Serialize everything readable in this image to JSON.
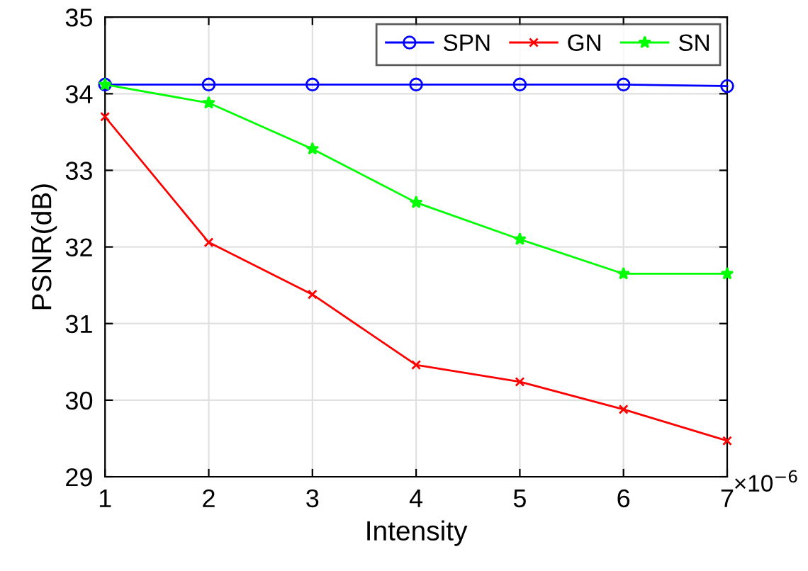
{
  "chart_data": {
    "type": "line",
    "xlabel": "Intensity",
    "ylabel": "PSNR(dB)",
    "x": [
      1,
      2,
      3,
      4,
      5,
      6,
      7
    ],
    "series": [
      {
        "name": "SPN",
        "color": "#0000ff",
        "marker": "circle",
        "values": [
          34.12,
          34.12,
          34.12,
          34.12,
          34.12,
          34.12,
          34.1
        ]
      },
      {
        "name": "GN",
        "color": "#ff0000",
        "marker": "cross",
        "values": [
          33.7,
          32.06,
          31.38,
          30.46,
          30.24,
          29.88,
          29.47
        ]
      },
      {
        "name": "SN",
        "color": "#00ff00",
        "marker": "star",
        "values": [
          34.12,
          33.88,
          33.28,
          32.58,
          32.1,
          31.65,
          31.65
        ]
      }
    ],
    "xlim": [
      1,
      7
    ],
    "xticks": [
      1,
      2,
      3,
      4,
      5,
      6,
      7
    ],
    "ylim": [
      29,
      35
    ],
    "yticks": [
      29,
      30,
      31,
      32,
      33,
      34,
      35
    ],
    "annotations": [
      "×10$^{−6}$"
    ],
    "grid": true,
    "legend": "top right",
    "line_style": "solid"
  }
}
